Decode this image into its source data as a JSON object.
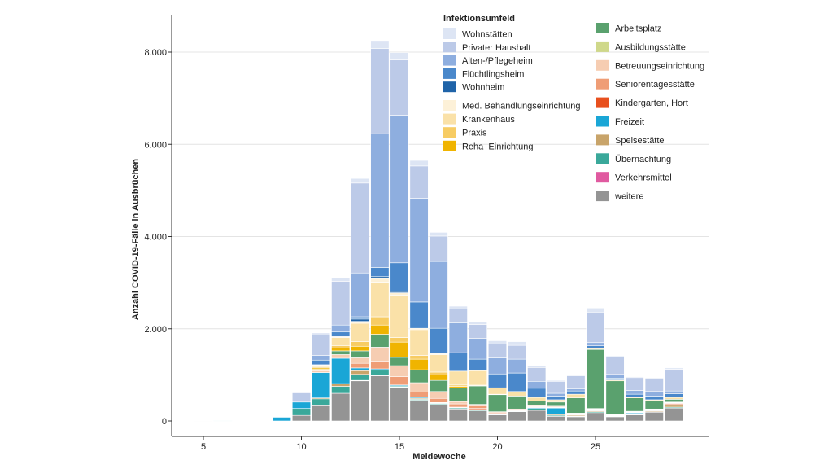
{
  "chart_data": {
    "type": "bar",
    "stacked": true,
    "xlabel": "Meldewoche",
    "ylabel": "Anzahl COVID-19-Fälle in Ausbrüchen",
    "ylim": [
      0,
      8600
    ],
    "y_ticks": [
      0,
      2000,
      4000,
      6000,
      8000
    ],
    "y_tick_labels": [
      "0",
      "2.000",
      "4.000",
      "6.000",
      "8.000"
    ],
    "x_ticks": [
      5,
      10,
      15,
      20,
      25
    ],
    "x_tick_labels": [
      "5",
      "10",
      "15",
      "20",
      "25"
    ],
    "weeks": [
      5,
      6,
      7,
      8,
      9,
      10,
      11,
      12,
      13,
      14,
      15,
      16,
      17,
      18,
      19,
      20,
      21,
      22,
      23,
      24,
      25,
      26,
      27,
      28,
      29
    ],
    "legend_title": "Infektionsumfeld",
    "series": [
      {
        "name": "weitere",
        "color": "#949494",
        "values": [
          10,
          5,
          5,
          0,
          0,
          120,
          330,
          600,
          870,
          980,
          730,
          450,
          360,
          260,
          220,
          130,
          200,
          230,
          100,
          90,
          180,
          90,
          130,
          190,
          280
        ]
      },
      {
        "name": "Verkehrsmittel",
        "color": "#e05aa0",
        "values": [
          0,
          0,
          0,
          0,
          0,
          0,
          0,
          0,
          10,
          10,
          10,
          0,
          0,
          0,
          0,
          0,
          0,
          0,
          0,
          0,
          0,
          0,
          0,
          0,
          0
        ]
      },
      {
        "name": "Übernachtung",
        "color": "#3aa89a",
        "values": [
          0,
          0,
          0,
          0,
          0,
          150,
          150,
          150,
          130,
          110,
          20,
          20,
          20,
          20,
          20,
          10,
          10,
          40,
          20,
          10,
          20,
          10,
          10,
          10,
          20
        ]
      },
      {
        "name": "Speisestätte",
        "color": "#c8a46a",
        "values": [
          0,
          0,
          0,
          0,
          0,
          0,
          20,
          60,
          80,
          0,
          0,
          20,
          0,
          0,
          0,
          0,
          0,
          0,
          20,
          20,
          20,
          0,
          20,
          20,
          40
        ]
      },
      {
        "name": "Freizeit",
        "color": "#1aa6d6",
        "values": [
          5,
          5,
          0,
          0,
          80,
          140,
          550,
          550,
          60,
          30,
          20,
          20,
          10,
          10,
          10,
          10,
          10,
          20,
          140,
          10,
          10,
          10,
          20,
          10,
          20
        ]
      },
      {
        "name": "Kindergarten, Hort",
        "color": "#e8501e",
        "values": [
          0,
          0,
          0,
          0,
          0,
          0,
          0,
          0,
          0,
          0,
          0,
          0,
          10,
          10,
          20,
          10,
          10,
          10,
          10,
          10,
          10,
          10,
          10,
          10,
          20
        ]
      },
      {
        "name": "Seniorentagesstätte",
        "color": "#ef9d76",
        "values": [
          0,
          0,
          0,
          0,
          0,
          0,
          0,
          0,
          100,
          170,
          180,
          120,
          90,
          70,
          60,
          20,
          10,
          10,
          10,
          10,
          10,
          10,
          10,
          10,
          10
        ]
      },
      {
        "name": "Betreuungseinrichtung",
        "color": "#f6cdb2",
        "values": [
          0,
          0,
          0,
          0,
          0,
          0,
          40,
          80,
          120,
          300,
          240,
          200,
          150,
          50,
          30,
          20,
          20,
          20,
          20,
          10,
          10,
          10,
          10,
          10,
          10
        ]
      },
      {
        "name": "Ausbildungsstätte",
        "color": "#cfd88a",
        "values": [
          0,
          0,
          0,
          0,
          0,
          0,
          0,
          0,
          0,
          0,
          0,
          0,
          0,
          0,
          0,
          0,
          0,
          0,
          0,
          10,
          10,
          10,
          0,
          0,
          10
        ]
      },
      {
        "name": "Arbeitsplatz",
        "color": "#5aa16e",
        "values": [
          0,
          0,
          0,
          0,
          0,
          0,
          30,
          80,
          150,
          280,
          180,
          280,
          240,
          300,
          400,
          370,
          280,
          100,
          90,
          330,
          1280,
          720,
          290,
          180,
          60
        ]
      },
      {
        "name": "Reha–Einrichtung",
        "color": "#f0b400",
        "values": [
          0,
          0,
          0,
          0,
          0,
          0,
          30,
          60,
          100,
          200,
          330,
          230,
          120,
          30,
          10,
          0,
          0,
          0,
          0,
          0,
          0,
          0,
          0,
          0,
          0
        ]
      },
      {
        "name": "Praxis",
        "color": "#f7cc63",
        "values": [
          0,
          0,
          0,
          0,
          0,
          0,
          20,
          50,
          100,
          180,
          100,
          80,
          60,
          30,
          20,
          10,
          0,
          0,
          0,
          0,
          0,
          0,
          0,
          0,
          0
        ]
      },
      {
        "name": "Krankenhaus",
        "color": "#fae1a8",
        "values": [
          0,
          0,
          0,
          0,
          0,
          0,
          40,
          180,
          400,
          750,
          920,
          560,
          380,
          300,
          300,
          140,
          100,
          80,
          50,
          80,
          20,
          20,
          20,
          20,
          40
        ]
      },
      {
        "name": "Med. Behandlungseinrichtung",
        "color": "#fdf1d8",
        "values": [
          0,
          0,
          0,
          0,
          0,
          0,
          10,
          20,
          40,
          80,
          50,
          30,
          20,
          0,
          0,
          0,
          0,
          0,
          0,
          0,
          0,
          0,
          0,
          0,
          0
        ]
      },
      {
        "name": "Wohnheim",
        "color": "#1f63a8",
        "values": [
          0,
          0,
          0,
          0,
          0,
          0,
          0,
          0,
          50,
          40,
          30,
          0,
          0,
          0,
          0,
          0,
          0,
          0,
          0,
          0,
          0,
          0,
          0,
          0,
          0
        ]
      },
      {
        "name": "Flüchtlingsheim",
        "color": "#4a88cb",
        "values": [
          0,
          0,
          0,
          0,
          0,
          0,
          100,
          100,
          50,
          200,
          620,
          570,
          550,
          400,
          250,
          300,
          400,
          200,
          80,
          70,
          60,
          40,
          60,
          80,
          80
        ]
      },
      {
        "name": "Alten-/Pflegeheim",
        "color": "#8eaedf",
        "values": [
          0,
          0,
          0,
          0,
          0,
          0,
          100,
          150,
          950,
          2900,
          3200,
          2250,
          1450,
          650,
          450,
          350,
          300,
          150,
          60,
          50,
          70,
          80,
          80,
          100,
          60
        ]
      },
      {
        "name": "Privater Haushalt",
        "color": "#bccae8",
        "values": [
          0,
          0,
          0,
          0,
          0,
          200,
          440,
          950,
          1950,
          1850,
          1200,
          700,
          550,
          300,
          300,
          300,
          300,
          300,
          260,
          280,
          650,
          380,
          280,
          280,
          470
        ]
      },
      {
        "name": "Wohnstätten",
        "color": "#dde5f4",
        "values": [
          0,
          0,
          0,
          0,
          0,
          30,
          50,
          70,
          100,
          170,
          160,
          120,
          80,
          60,
          60,
          70,
          80,
          40,
          20,
          20,
          100,
          20,
          20,
          20,
          30
        ]
      }
    ],
    "legend_groups": [
      [
        "Wohnstätten",
        "Privater Haushalt",
        "Alten-/Pflegeheim",
        "Flüchtlingsheim",
        "Wohnheim"
      ],
      [
        "Med. Behandlungseinrichtung",
        "Krankenhaus",
        "Praxis",
        "Reha–Einrichtung"
      ],
      [
        "Arbeitsplatz",
        "Ausbildungsstätte",
        "Betreuungseinrichtung",
        "Seniorentagesstätte",
        "Kindergarten, Hort",
        "Freizeit",
        "Speisestätte",
        "Übernachtung",
        "Verkehrsmittel",
        "weitere"
      ]
    ]
  }
}
